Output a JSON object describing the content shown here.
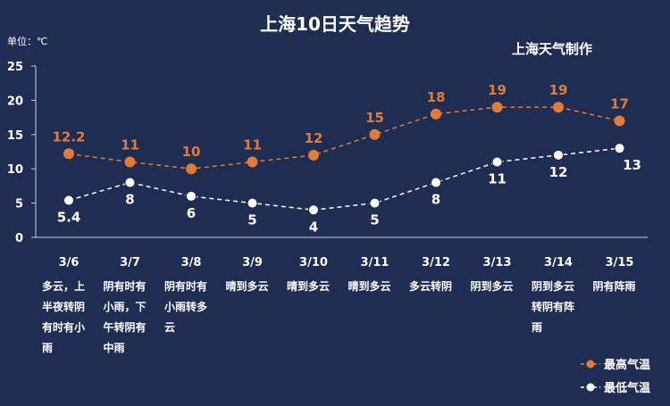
{
  "chart_data": {
    "type": "line",
    "title": "上海10日天气趋势",
    "subtitle": "上海天气制作",
    "unit_label": "单位：℃",
    "ylim": [
      0,
      25
    ],
    "yticks": [
      0,
      5,
      10,
      15,
      20,
      25
    ],
    "grid": false,
    "legend_position": "bottom-right",
    "categories": [
      "3/6",
      "3/7",
      "3/8",
      "3/9",
      "3/10",
      "3/11",
      "3/12",
      "3/13",
      "3/14",
      "3/15"
    ],
    "weather": [
      [
        "多云，上",
        "半夜转阴",
        "有时有小",
        "雨"
      ],
      [
        "阴有时有",
        "小雨，下",
        "午转阴有",
        "中雨"
      ],
      [
        "阴有时有",
        "小雨转多",
        "云"
      ],
      [
        "晴到多云"
      ],
      [
        "晴到多云"
      ],
      [
        "晴到多云"
      ],
      [
        "多云转阴"
      ],
      [
        "阴到多云"
      ],
      [
        "阴到多云",
        "转阴有阵",
        "雨"
      ],
      [
        "阴有阵雨"
      ]
    ],
    "series": [
      {
        "name": "最高气温",
        "color": "#e07b39",
        "values": [
          12.2,
          11,
          10,
          11,
          12,
          15,
          18,
          19,
          19,
          17
        ],
        "labels": [
          "12.2",
          "11",
          "10",
          "11",
          "12",
          "15",
          "18",
          "19",
          "19",
          "17"
        ]
      },
      {
        "name": "最低气温",
        "color": "#ffffff",
        "values": [
          5.4,
          8,
          6,
          5,
          4,
          5,
          8,
          11,
          12,
          13
        ],
        "labels": [
          "5.4",
          "8",
          "6",
          "5",
          "4",
          "5",
          "8",
          "11",
          "12",
          "13"
        ]
      }
    ]
  }
}
